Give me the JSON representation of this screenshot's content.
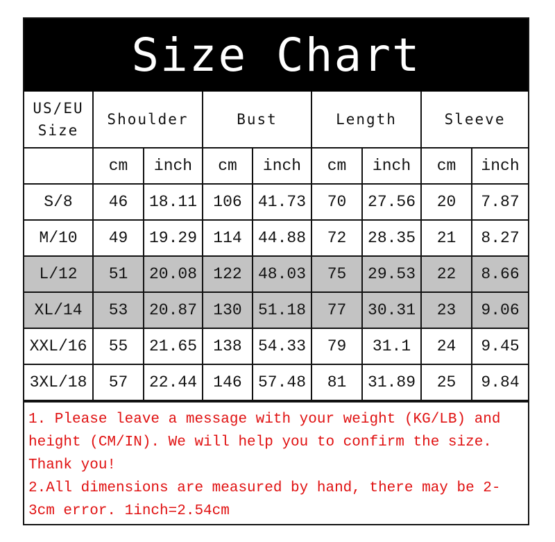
{
  "title": "Size Chart",
  "header": {
    "size": [
      "US/EU",
      "Size"
    ],
    "groups": [
      "Shoulder",
      "Bust",
      "Length",
      "Sleeve"
    ],
    "units": [
      "cm",
      "inch"
    ]
  },
  "highlight_color": "#c3c3c3",
  "rows": [
    {
      "size": "S/8",
      "values": [
        "46",
        "18.11",
        "106",
        "41.73",
        "70",
        "27.56",
        "20",
        "7.87"
      ],
      "highlighted": false
    },
    {
      "size": "M/10",
      "values": [
        "49",
        "19.29",
        "114",
        "44.88",
        "72",
        "28.35",
        "21",
        "8.27"
      ],
      "highlighted": false
    },
    {
      "size": "L/12",
      "values": [
        "51",
        "20.08",
        "122",
        "48.03",
        "75",
        "29.53",
        "22",
        "8.66"
      ],
      "highlighted": true
    },
    {
      "size": "XL/14",
      "values": [
        "53",
        "20.87",
        "130",
        "51.18",
        "77",
        "30.31",
        "23",
        "9.06"
      ],
      "highlighted": true
    },
    {
      "size": "XXL/16",
      "values": [
        "55",
        "21.65",
        "138",
        "54.33",
        "79",
        "31.1",
        "24",
        "9.45"
      ],
      "highlighted": false
    },
    {
      "size": "3XL/18",
      "values": [
        "57",
        "22.44",
        "146",
        "57.48",
        "81",
        "31.89",
        "25",
        "9.84"
      ],
      "highlighted": false
    }
  ],
  "notes": {
    "color": "#e01010",
    "lines": [
      "1. Please leave a message with your weight (KG/LB) and",
      "height (CM/IN). We will help you to confirm the size.",
      "Thank you!",
      "2.All dimensions are measured by hand, there may be 2-",
      "3cm error. 1inch=2.54cm"
    ]
  }
}
